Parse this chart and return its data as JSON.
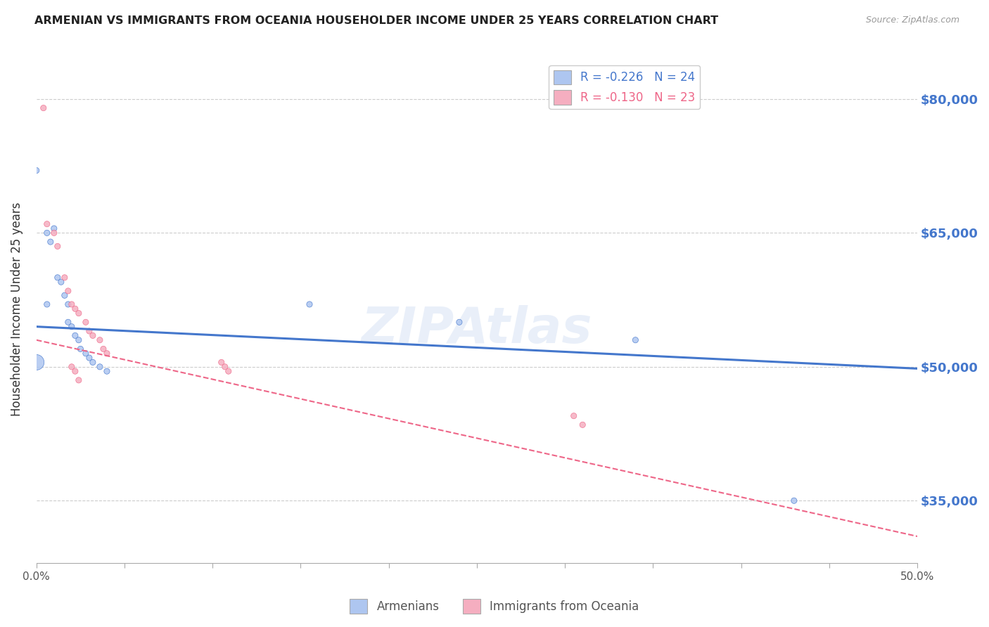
{
  "title": "ARMENIAN VS IMMIGRANTS FROM OCEANIA HOUSEHOLDER INCOME UNDER 25 YEARS CORRELATION CHART",
  "source": "Source: ZipAtlas.com",
  "ylabel": "Householder Income Under 25 years",
  "xlim": [
    0.0,
    0.5
  ],
  "ylim": [
    28000,
    85000
  ],
  "yticks": [
    35000,
    50000,
    65000,
    80000
  ],
  "ytick_labels": [
    "$35,000",
    "$50,000",
    "$65,000",
    "$80,000"
  ],
  "xticks": [
    0.0,
    0.05,
    0.1,
    0.15,
    0.2,
    0.25,
    0.3,
    0.35,
    0.4,
    0.45,
    0.5
  ],
  "xtick_labels": [
    "0.0%",
    "",
    "",
    "",
    "",
    "",
    "",
    "",
    "",
    "",
    "50.0%"
  ],
  "bg_color": "#ffffff",
  "grid_color": "#cccccc",
  "armenian_color": "#aec6f0",
  "oceania_color": "#f5aec0",
  "armenian_line_color": "#4477cc",
  "oceania_line_color": "#ee6688",
  "armenian_R": "-0.226",
  "armenian_N": "24",
  "oceania_R": "-0.130",
  "oceania_N": "23",
  "arm_line_x0": 0.0,
  "arm_line_y0": 54500,
  "arm_line_x1": 0.5,
  "arm_line_y1": 49800,
  "oce_line_x0": 0.0,
  "oce_line_y0": 53000,
  "oce_line_x1": 0.5,
  "oce_line_y1": 31000,
  "armenian_scatter_x": [
    0.006,
    0.006,
    0.008,
    0.01,
    0.012,
    0.014,
    0.016,
    0.018,
    0.018,
    0.02,
    0.022,
    0.024,
    0.025,
    0.028,
    0.03,
    0.032,
    0.036,
    0.04,
    0.0,
    0.0,
    0.155,
    0.24,
    0.34,
    0.43
  ],
  "armenian_scatter_y": [
    57000,
    65000,
    64000,
    65500,
    60000,
    59500,
    58000,
    57000,
    55000,
    54500,
    53500,
    53000,
    52000,
    51500,
    51000,
    50500,
    50000,
    49500,
    72000,
    50500,
    57000,
    55000,
    53000,
    35000
  ],
  "armenian_scatter_size": [
    35,
    35,
    35,
    35,
    35,
    35,
    35,
    35,
    35,
    35,
    35,
    35,
    35,
    35,
    35,
    35,
    35,
    35,
    35,
    250,
    35,
    35,
    35,
    35
  ],
  "oceania_scatter_x": [
    0.004,
    0.006,
    0.01,
    0.012,
    0.016,
    0.018,
    0.02,
    0.022,
    0.024,
    0.028,
    0.03,
    0.032,
    0.036,
    0.038,
    0.04,
    0.02,
    0.022,
    0.024,
    0.105,
    0.107,
    0.109,
    0.305,
    0.31
  ],
  "oceania_scatter_y": [
    79000,
    66000,
    65000,
    63500,
    60000,
    58500,
    57000,
    56500,
    56000,
    55000,
    54000,
    53500,
    53000,
    52000,
    51500,
    50000,
    49500,
    48500,
    50500,
    50000,
    49500,
    44500,
    43500
  ],
  "oceania_scatter_size": [
    35,
    35,
    35,
    35,
    35,
    35,
    35,
    35,
    35,
    35,
    35,
    35,
    35,
    35,
    35,
    35,
    35,
    35,
    35,
    35,
    35,
    35,
    35
  ]
}
